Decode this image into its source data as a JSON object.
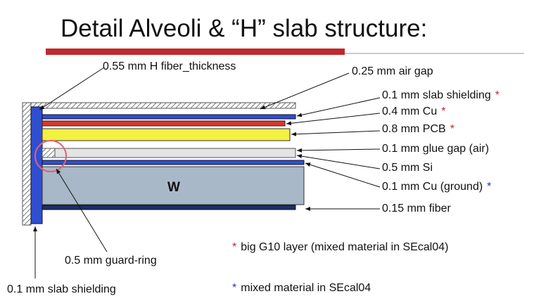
{
  "title": "Detail Alveoli & “H” slab structure:",
  "core_label": "W",
  "top_labels": [
    "0.55 mm H fiber_thickness",
    "0.25 mm air gap"
  ],
  "layer_labels": [
    {
      "text": "0.1 mm slab shielding",
      "marker": "*",
      "marker_color": "#c0282d"
    },
    {
      "text": "0.4 mm Cu",
      "marker": "*",
      "marker_color": "#c0282d"
    },
    {
      "text": "0.8 mm PCB",
      "marker": "*",
      "marker_color": "#c0282d"
    },
    {
      "text": "0.1 mm glue gap (air)"
    },
    {
      "text": "0.5 mm Si"
    },
    {
      "text": "0.1 mm Cu (ground)",
      "marker": "*",
      "marker_color": "#2233cc"
    },
    {
      "text": "0.15 mm fiber"
    }
  ],
  "bottom_labels": [
    "0.5 mm guard-ring",
    "0.1 mm slab shielding"
  ],
  "notes": [
    {
      "marker": "*",
      "marker_color": "#c0282d",
      "text": "big G10 layer (mixed material in SEcal04)"
    },
    {
      "marker": "*",
      "marker_color": "#2233cc",
      "text": "mixed material in SEcal04"
    }
  ]
}
